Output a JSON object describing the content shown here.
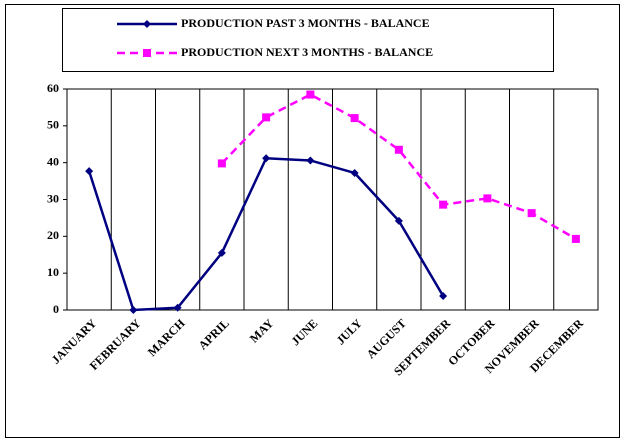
{
  "chart_data": {
    "type": "line",
    "categories": [
      "JANUARY",
      "FEBRUARY",
      "MARCH",
      "APRIL",
      "MAY",
      "JUNE",
      "JULY",
      "AUGUST",
      "SEPTEMBER",
      "OCTOBER",
      "NOVEMBER",
      "DECEMBER"
    ],
    "series": [
      {
        "name": "PRODUCTION PAST 3 MONTHS - BALANCE",
        "color": "#000080",
        "marker": "diamond",
        "dashed": false,
        "values": [
          37.7,
          0,
          0.6,
          15.5,
          41.2,
          40.6,
          37.2,
          24.2,
          3.8,
          null,
          null,
          null
        ]
      },
      {
        "name": "PRODUCTION NEXT 3 MONTHS - BALANCE",
        "color": "#ff00ff",
        "marker": "square",
        "dashed": true,
        "values": [
          null,
          null,
          null,
          39.8,
          52.3,
          58.5,
          52.1,
          43.5,
          28.6,
          30.3,
          26.3,
          19.3
        ]
      }
    ],
    "ylim": [
      0,
      60
    ],
    "yticks": [
      0,
      10,
      20,
      30,
      40,
      50,
      60
    ],
    "grid": true
  }
}
